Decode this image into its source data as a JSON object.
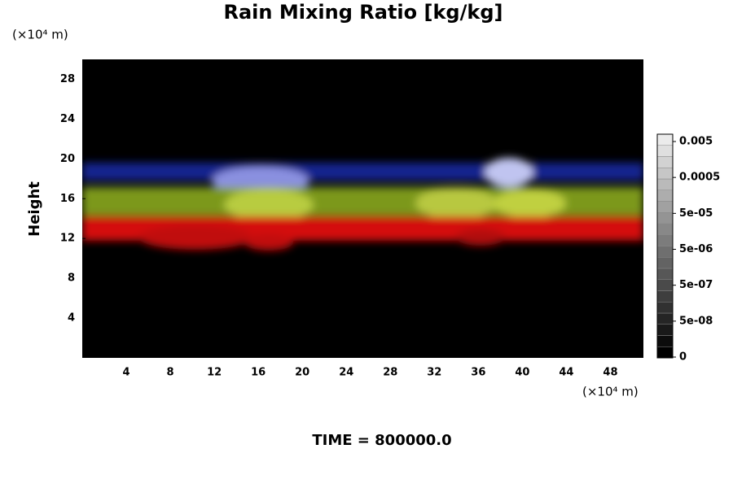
{
  "chart_data": {
    "type": "volume-render",
    "title": "Rain Mixing Ratio [kg/kg]",
    "y_label": "Height",
    "x_unit": "(×10⁴ m)",
    "y_unit": "(×10⁴ m)",
    "time_label": "TIME = 800000.0",
    "xlim": [
      0,
      51
    ],
    "xticks": [
      4,
      8,
      12,
      16,
      20,
      24,
      28,
      32,
      36,
      40,
      44,
      48
    ],
    "ylim": [
      0,
      30
    ],
    "yticks": [
      4,
      8,
      12,
      16,
      20,
      24,
      28
    ],
    "colorbar_ticks": [
      0,
      {
        "value": 5e-08,
        "label": "5e-08"
      },
      {
        "value": 5e-07,
        "label": "5e-07"
      },
      {
        "value": 5e-06,
        "label": "5e-06"
      },
      {
        "value": 5e-05,
        "label": "5e-05"
      },
      0.0005,
      0.005
    ]
  }
}
